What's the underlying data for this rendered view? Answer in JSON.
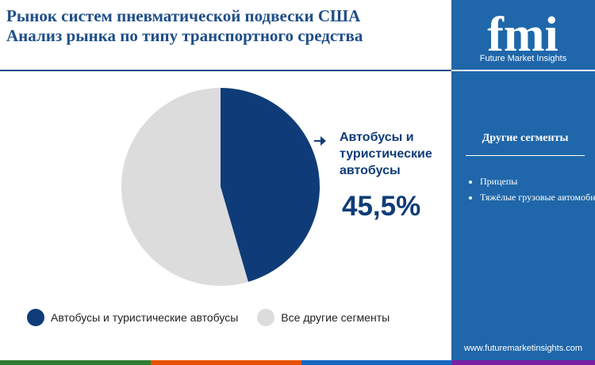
{
  "header": {
    "title_line1": "Рынок систем пневматической подвески США",
    "title_line2": "Анализ рынка по типу транспортного средства"
  },
  "brand": {
    "logo_text": "fmi",
    "logo_subtitle": "Future Market Insights",
    "url": "www.futuremarketinsights.com"
  },
  "sidebar": {
    "heading": "Другие сегменты",
    "items": [
      "Прицепы",
      "Тяжёлые грузовые автомобили"
    ]
  },
  "callout": {
    "label": "Автобусы и туристические автобусы",
    "value": "45,5%"
  },
  "legend": [
    {
      "label": "Автобусы и туристические автобусы",
      "color": "#0f3c78"
    },
    {
      "label": "Все другие сегменты",
      "color": "#dcdcdc"
    }
  ],
  "colors": {
    "primary": "#0f3c78",
    "secondary": "#dcdcdc",
    "sidebar": "#1f67aa",
    "bar_colors": [
      "#2e7d32",
      "#e65100",
      "#1565c0",
      "#7b1fa2"
    ]
  },
  "chart_data": {
    "type": "pie",
    "slices": [
      {
        "label": "Автобусы и туристические автобусы",
        "value": 45.5,
        "color": "#0f3c78"
      },
      {
        "label": "Все другие сегменты",
        "value": 54.5,
        "color": "#dcdcdc"
      }
    ]
  }
}
